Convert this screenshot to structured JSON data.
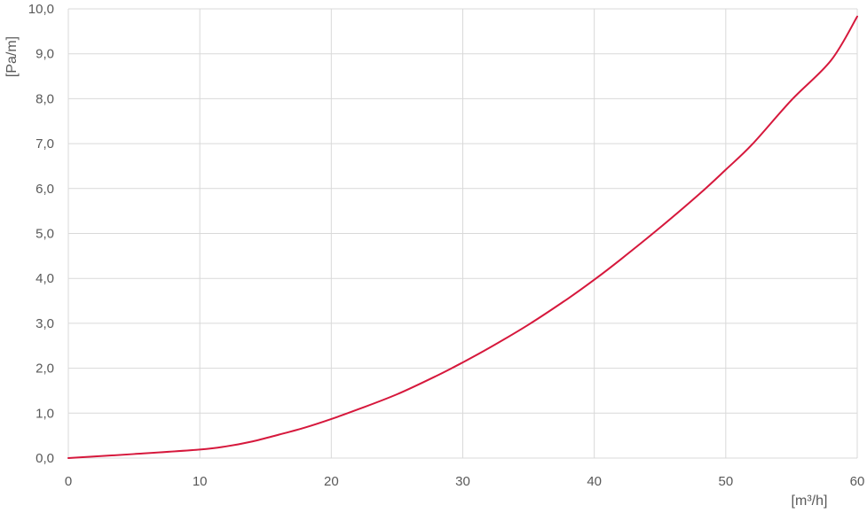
{
  "chart_data": {
    "type": "line",
    "title": "",
    "xlabel": "[m³/h]",
    "ylabel": "[Pa/m]",
    "xlim": [
      0,
      60
    ],
    "ylim": [
      0,
      10
    ],
    "x_ticks": [
      {
        "value": 0,
        "label": "0"
      },
      {
        "value": 10,
        "label": "10"
      },
      {
        "value": 20,
        "label": "20"
      },
      {
        "value": 30,
        "label": "30"
      },
      {
        "value": 40,
        "label": "40"
      },
      {
        "value": 50,
        "label": "50"
      },
      {
        "value": 60,
        "label": "60"
      }
    ],
    "y_ticks": [
      {
        "value": 0,
        "label": "0,0"
      },
      {
        "value": 1,
        "label": "1,0"
      },
      {
        "value": 2,
        "label": "2,0"
      },
      {
        "value": 3,
        "label": "3,0"
      },
      {
        "value": 4,
        "label": "4,0"
      },
      {
        "value": 5,
        "label": "5,0"
      },
      {
        "value": 6,
        "label": "6,0"
      },
      {
        "value": 7,
        "label": "7,0"
      },
      {
        "value": 8,
        "label": "8,0"
      },
      {
        "value": 9,
        "label": "9,0"
      },
      {
        "value": 10,
        "label": "10,0"
      }
    ],
    "grid": true,
    "legend": "none",
    "series": [
      {
        "color": "#d6183c",
        "x": [
          0,
          5,
          10,
          12,
          14,
          16,
          18,
          20,
          22,
          25,
          28,
          30,
          32,
          35,
          38,
          40,
          42,
          45,
          48,
          50,
          52,
          55,
          58,
          60
        ],
        "y": [
          0,
          0.09,
          0.19,
          0.26,
          0.37,
          0.52,
          0.68,
          0.87,
          1.08,
          1.42,
          1.83,
          2.13,
          2.45,
          2.97,
          3.55,
          3.97,
          4.42,
          5.13,
          5.88,
          6.42,
          6.98,
          7.97,
          8.85,
          9.83
        ]
      }
    ]
  }
}
